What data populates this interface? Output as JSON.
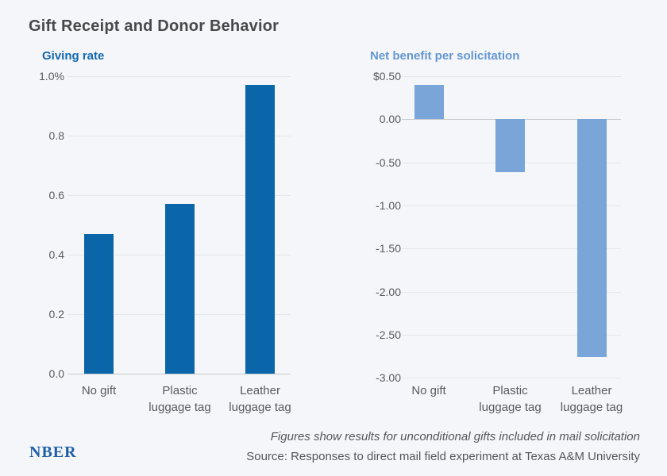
{
  "figure": {
    "title": "Gift Receipt and Donor Behavior",
    "background_color": "#f4f6f9",
    "title_color": "#48494b"
  },
  "branding": {
    "logo_text": "NBER",
    "logo_color": "#1f5fa9"
  },
  "footnote": {
    "note": "Figures show results for unconditional gifts included in mail solicitation",
    "source": "Source: Responses to direct mail field experiment at Texas A&M University",
    "text_color": "#55565a"
  },
  "chart_data": [
    {
      "type": "bar",
      "title": "Giving rate",
      "title_color": "#1268b1",
      "bar_color": "#0a65a9",
      "categories": [
        [
          "No gift"
        ],
        [
          "Plastic",
          "luggage tag"
        ],
        [
          "Leather",
          "luggage tag"
        ]
      ],
      "values": [
        0.47,
        0.57,
        0.97
      ],
      "ylim": [
        0,
        1.0
      ],
      "ytick_step": 0.2,
      "ytick_labels": [
        "1.0%",
        "0.8",
        "0.6",
        "0.4",
        "0.2",
        "0.0"
      ],
      "grid": true,
      "legend": "none",
      "gridline_color": "#e4e7ec",
      "zero_line_color": "#c6cacf",
      "tick_text_color": "#595a5c"
    },
    {
      "type": "bar",
      "title": "Net benefit per solicitation",
      "title_color": "#6397d2",
      "bar_color": "#7aa5d9",
      "categories": [
        [
          "No gift"
        ],
        [
          "Plastic",
          "luggage tag"
        ],
        [
          "Leather",
          "luggage tag"
        ]
      ],
      "values": [
        0.4,
        -0.61,
        -2.76
      ],
      "ylim": [
        -3.0,
        0.5
      ],
      "ytick_step": 0.5,
      "ytick_labels": [
        "$0.50",
        "0.00",
        "-0.50",
        "-1.00",
        "-1.50",
        "-2.00",
        "-2.50",
        "-3.00"
      ],
      "grid": true,
      "legend": "none",
      "gridline_color": "#e4e7ec",
      "zero_line_color": "#c6cacf",
      "tick_text_color": "#595a5c"
    }
  ]
}
